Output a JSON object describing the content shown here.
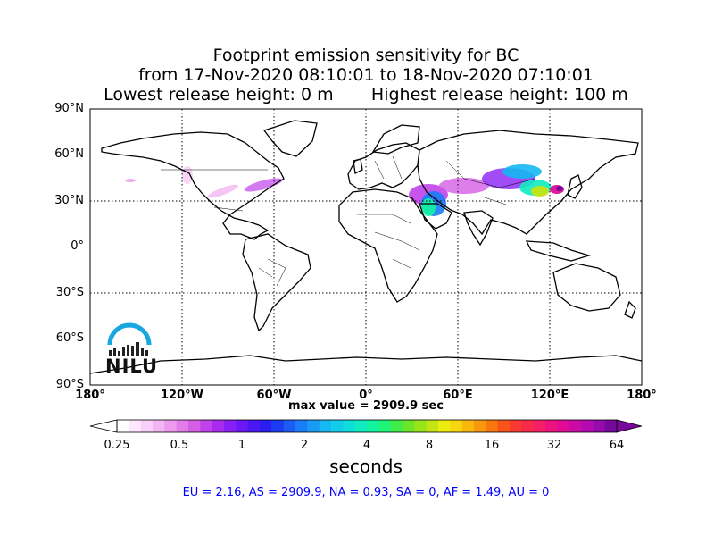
{
  "title": {
    "line1": "Footprint emission sensitivity for BC",
    "line2": "from 17-Nov-2020 08:10:01 to 18-Nov-2020 07:10:01",
    "line3_left": "Lowest release height: 0 m",
    "line3_right": "Highest release height: 100 m"
  },
  "map": {
    "lat_labels": [
      "90°N",
      "60°N",
      "30°N",
      "0°",
      "30°S",
      "60°S",
      "90°S"
    ],
    "lon_labels": [
      "180°",
      "120°W",
      "60°W",
      "0°",
      "60°E",
      "120°E",
      "180°"
    ],
    "gridlines": "dotted",
    "max_value_text": "max value = 2909.9 sec"
  },
  "colorbar": {
    "tick_labels": [
      "0.25",
      "0.5",
      "1",
      "2",
      "4",
      "8",
      "16",
      "32",
      "64"
    ],
    "unit": "seconds",
    "colors": [
      "#ffffff",
      "#fde8fd",
      "#f9d0f9",
      "#f3b6f3",
      "#ec9aee",
      "#e27ce8",
      "#d45ee6",
      "#c142ea",
      "#a82cf0",
      "#8a1ff4",
      "#6c18f6",
      "#4b16f4",
      "#2a1df2",
      "#1c3cf2",
      "#1c5cf4",
      "#1a7cf6",
      "#189cf6",
      "#14b8f2",
      "#12ccea",
      "#10dcd8",
      "#10ecc0",
      "#12f4a0",
      "#1ef478",
      "#40ec48",
      "#6ce628",
      "#98e41a",
      "#c4e414",
      "#ecec10",
      "#f8d60e",
      "#f8b80e",
      "#f8980e",
      "#f8760e",
      "#f8541a",
      "#f83a30",
      "#f82a4a",
      "#f61e66",
      "#ec1280",
      "#e00c96",
      "#cc0aa6",
      "#b40ab0",
      "#960aae",
      "#76089c"
    ]
  },
  "summary": "EU = 2.16,  AS = 2909.9,  NA = 0.93,  SA = 0,  AF = 1.49,  AU = 0",
  "logo_text": "NILU"
}
